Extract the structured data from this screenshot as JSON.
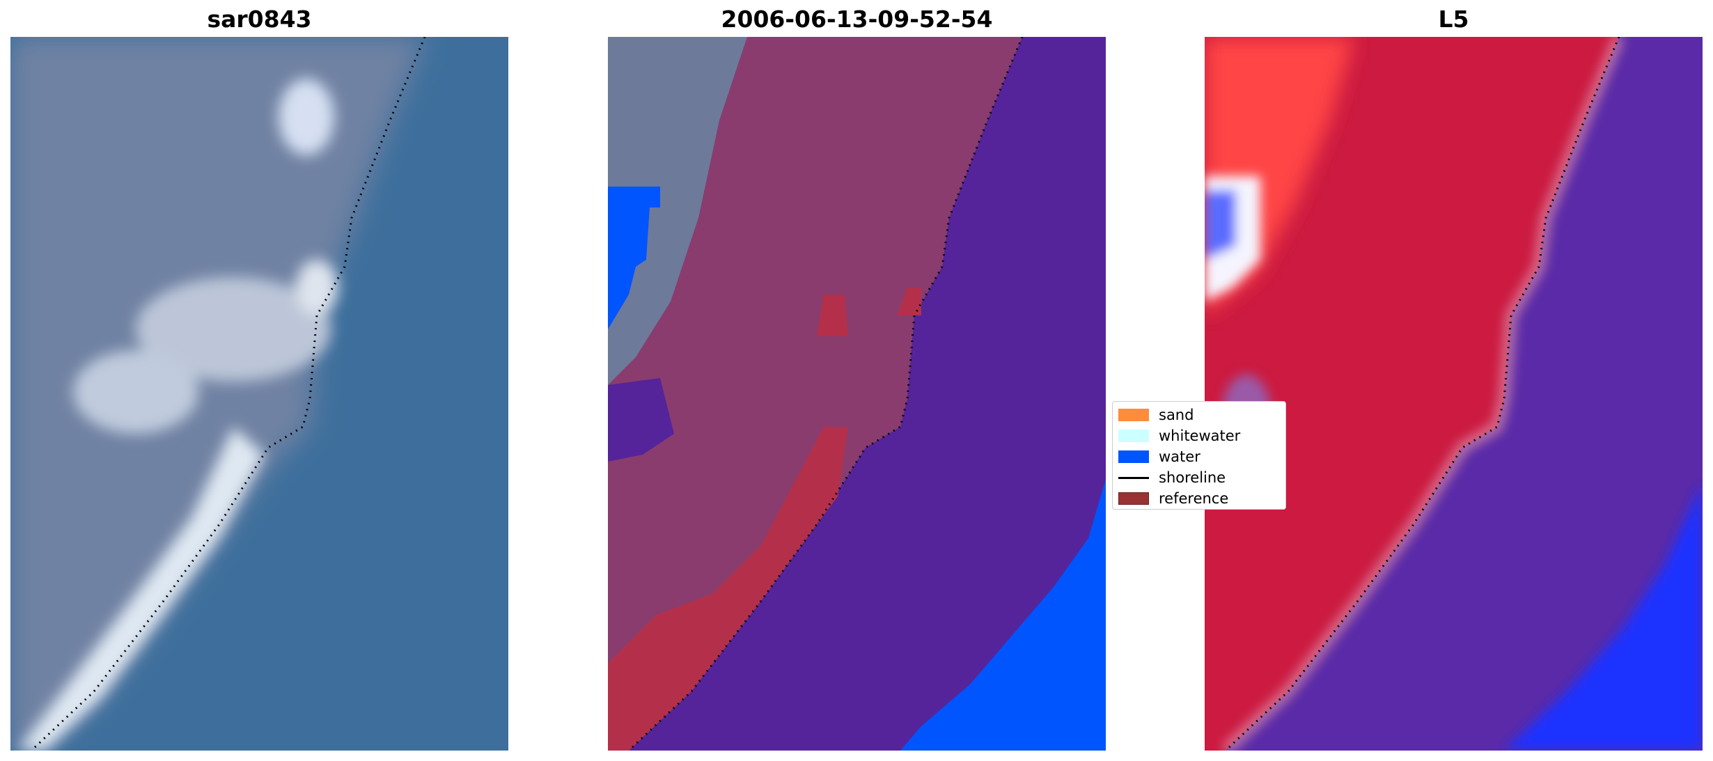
{
  "panels": [
    {
      "title": "sar0843"
    },
    {
      "title": "2006-06-13-09-52-54"
    },
    {
      "title": "L5"
    }
  ],
  "legend": {
    "items": [
      {
        "label": "sand",
        "color": "#ff8c3a"
      },
      {
        "label": "whitewater",
        "color": "#ccffff"
      },
      {
        "label": "water",
        "color": "#0055ff"
      },
      {
        "label": "shoreline",
        "color": "#000000"
      },
      {
        "label": "reference",
        "color": "#993333"
      }
    ]
  },
  "colors": {
    "rgb_sea": "#3e6f9c",
    "rgb_land": "#6f82a3",
    "rgb_surf": "#d8e2ef",
    "class_land": "#8a3c6e",
    "class_sea": "#55249a",
    "class_water": "#0055ff",
    "class_reference": "#b4304a",
    "index_land": "#cc1a40",
    "index_sea": "#5a2aa8",
    "index_blue": "#1a33ff",
    "index_bright": "#ff4444"
  }
}
